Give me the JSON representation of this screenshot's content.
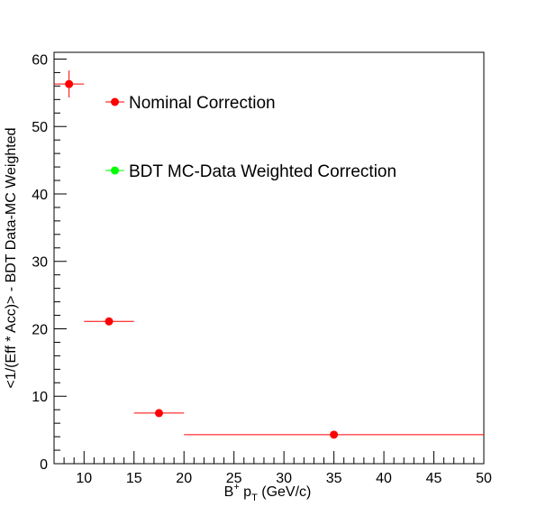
{
  "chart_data": {
    "type": "scatter",
    "title": "",
    "xlabel": {
      "base": "B",
      "sup": "+",
      "mid": " p",
      "sub": "T",
      "tail": " (GeV/c)"
    },
    "ylabel": "<1/(Eff * Acc)> - BDT Data-MC Weighted",
    "xlim": [
      7,
      50
    ],
    "ylim": [
      0,
      61
    ],
    "x_ticks": [
      10,
      15,
      20,
      25,
      30,
      35,
      40,
      45,
      50
    ],
    "x_tick_labels": [
      "10",
      "15",
      "20",
      "25",
      "30",
      "35",
      "40",
      "45",
      "50"
    ],
    "y_ticks": [
      0,
      10,
      20,
      30,
      40,
      50,
      60
    ],
    "y_tick_labels": [
      "0",
      "10",
      "20",
      "30",
      "40",
      "50",
      "60"
    ],
    "grid": false,
    "legend_position": "upper-left-inside",
    "series": [
      {
        "name": "Nominal Correction",
        "color": "#ff0000",
        "points": [
          {
            "x": 8.5,
            "x_low": 7,
            "x_high": 10,
            "y": 56.3,
            "y_err": 2.0
          },
          {
            "x": 12.5,
            "x_low": 10,
            "x_high": 15,
            "y": 21.1,
            "y_err": 0.3
          },
          {
            "x": 17.5,
            "x_low": 15,
            "x_high": 20,
            "y": 7.5,
            "y_err": 0.2
          },
          {
            "x": 35,
            "x_low": 20,
            "x_high": 50,
            "y": 4.3,
            "y_err": 0.1
          }
        ]
      },
      {
        "name": "BDT MC-Data Weighted Correction",
        "color": "#00ff00",
        "points": []
      }
    ]
  }
}
